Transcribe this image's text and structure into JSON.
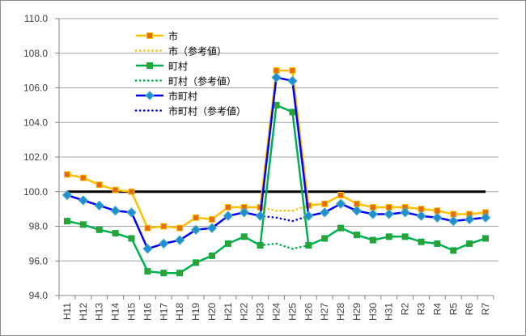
{
  "chart_data": {
    "type": "line",
    "title": "",
    "xlabel": "",
    "ylabel": "",
    "ylim": [
      94.0,
      110.0
    ],
    "yticks": [
      "94.0",
      "96.0",
      "98.0",
      "100.0",
      "102.0",
      "104.0",
      "106.0",
      "108.0",
      "110.0"
    ],
    "grid": true,
    "legend_position": "top-left inside",
    "reference_line": {
      "value": 100.0,
      "color": "#000000"
    },
    "categories": [
      "H11",
      "H12",
      "H13",
      "H14",
      "H15",
      "H16",
      "H17",
      "H18",
      "H19",
      "H20",
      "H21",
      "H22",
      "H23",
      "H24",
      "H25",
      "H26",
      "H27",
      "H28",
      "H29",
      "H30",
      "H31",
      "R2",
      "R3",
      "R4",
      "R5",
      "R6",
      "R7"
    ],
    "series": [
      {
        "name": "市",
        "style": "solid",
        "color": "#FFC000",
        "marker": "square",
        "marker_color": "#E46C0A",
        "values": [
          101.0,
          100.8,
          100.4,
          100.1,
          100.0,
          97.9,
          98.0,
          97.9,
          98.5,
          98.4,
          99.1,
          99.1,
          99.1,
          107.0,
          107.0,
          99.2,
          99.3,
          99.8,
          99.3,
          99.1,
          99.1,
          99.1,
          99.0,
          98.9,
          98.7,
          98.7,
          98.8
        ]
      },
      {
        "name": "市（参考値）",
        "style": "dotted",
        "color": "#FFC000",
        "marker": "none",
        "values": [
          null,
          null,
          null,
          null,
          null,
          null,
          null,
          null,
          null,
          null,
          null,
          null,
          99.1,
          98.9,
          98.9,
          99.2,
          null,
          null,
          null,
          null,
          null,
          null,
          null,
          null,
          null,
          null,
          null
        ]
      },
      {
        "name": "町村",
        "style": "solid",
        "color": "#00B050",
        "marker": "square",
        "marker_color": "#33A02C",
        "values": [
          98.3,
          98.1,
          97.8,
          97.6,
          97.3,
          95.4,
          95.3,
          95.3,
          95.9,
          96.3,
          97.0,
          97.4,
          96.9,
          105.0,
          104.6,
          96.9,
          97.3,
          97.9,
          97.5,
          97.2,
          97.4,
          97.4,
          97.1,
          97.0,
          96.6,
          97.0,
          97.3
        ]
      },
      {
        "name": "町村（参考値）",
        "style": "dotted",
        "color": "#00B050",
        "marker": "none",
        "values": [
          null,
          null,
          null,
          null,
          null,
          null,
          null,
          null,
          null,
          null,
          null,
          null,
          96.9,
          97.0,
          96.7,
          96.9,
          null,
          null,
          null,
          null,
          null,
          null,
          null,
          null,
          null,
          null,
          null
        ]
      },
      {
        "name": "市町村",
        "style": "solid",
        "color": "#0000FF",
        "marker": "diamond",
        "marker_color": "#1F8FD0",
        "values": [
          99.8,
          99.5,
          99.2,
          98.9,
          98.8,
          96.7,
          97.0,
          97.2,
          97.8,
          97.9,
          98.6,
          98.8,
          98.6,
          106.6,
          106.4,
          98.6,
          98.8,
          99.3,
          98.9,
          98.7,
          98.7,
          98.8,
          98.6,
          98.5,
          98.3,
          98.4,
          98.5
        ]
      },
      {
        "name": "市町村（参考値）",
        "style": "dotted",
        "color": "#0000FF",
        "marker": "none",
        "values": [
          null,
          null,
          null,
          null,
          null,
          null,
          null,
          null,
          null,
          null,
          null,
          null,
          98.6,
          98.5,
          98.3,
          98.6,
          null,
          null,
          null,
          null,
          null,
          null,
          null,
          null,
          null,
          null,
          null
        ]
      }
    ]
  },
  "colors": {
    "gridline": "#A6A6A6",
    "axis": "#868686",
    "border": "#8C8C8C"
  }
}
